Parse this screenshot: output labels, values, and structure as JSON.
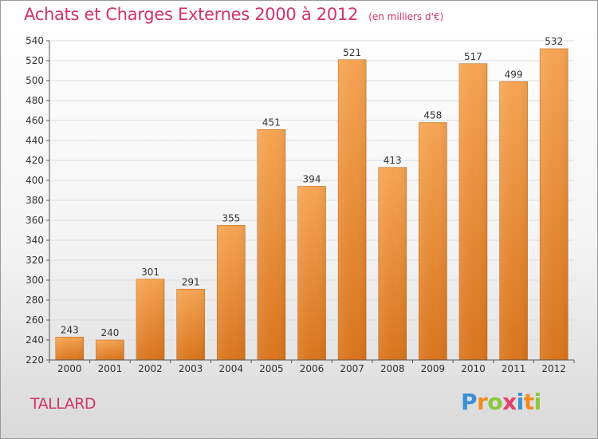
{
  "header": {
    "title": "Achats et Charges Externes 2000 à 2012",
    "subtitle": "(en milliers d'€)"
  },
  "footer": {
    "place": "TALLARD",
    "logo_letters": [
      "P",
      "r",
      "o",
      "x",
      "i",
      "t",
      "i"
    ],
    "logo_colors": [
      "#3b8fd6",
      "#f08c1c",
      "#8dc63f",
      "#e83e6b",
      "#3b8fd6",
      "#f08c1c",
      "#8dc63f"
    ]
  },
  "colors": {
    "bar_top": "#f5a452",
    "bar_bottom": "#d9741c",
    "grid": "#dddddd",
    "axis": "#555555",
    "title": "#d0336c"
  },
  "chart_data": {
    "type": "bar",
    "title": "Achats et Charges Externes 2000 à 2012",
    "subtitle": "(en milliers d'€)",
    "categories": [
      "2000",
      "2001",
      "2002",
      "2003",
      "2004",
      "2005",
      "2006",
      "2007",
      "2008",
      "2009",
      "2010",
      "2011",
      "2012"
    ],
    "values": [
      243,
      240,
      301,
      291,
      355,
      451,
      394,
      521,
      413,
      458,
      517,
      499,
      532
    ],
    "ylim": [
      220,
      540
    ],
    "ytick_step": 20,
    "grid": true,
    "xlabel": "",
    "ylabel": ""
  }
}
